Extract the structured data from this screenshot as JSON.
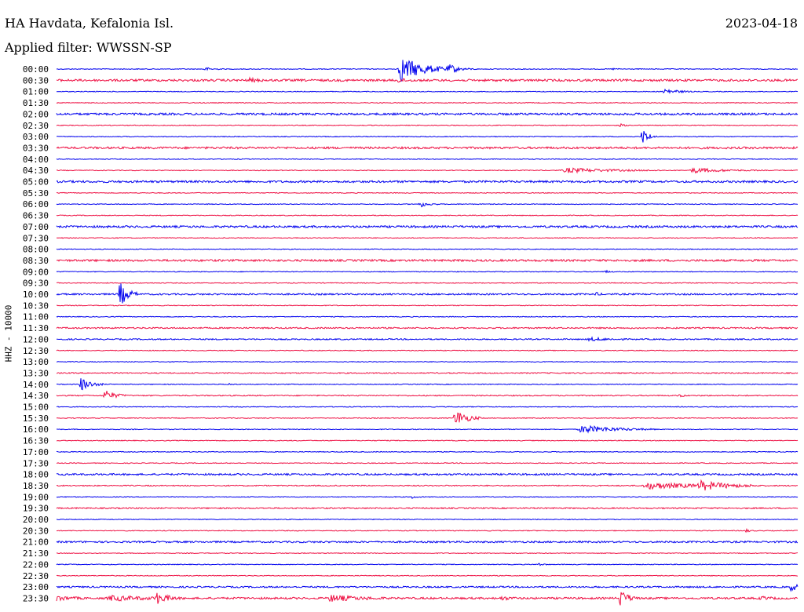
{
  "header": {
    "station": "HA Havdata, Kefalonia Isl.",
    "date": "2023-04-18",
    "filter": "Applied filter: WWSSN-SP"
  },
  "channel_label": "HHZ - 10000",
  "colors": {
    "even_rows": "#0000ee",
    "odd_rows": "#ee1144",
    "text": "#000000",
    "background": "#ffffff"
  },
  "chart_data": {
    "type": "line",
    "title": "HA Havdata, Kefalonia Isl.",
    "subtitle": "Applied filter: WWSSN-SP",
    "ylabel": "HHZ - 10000",
    "xlabel": "",
    "row_interval_minutes": 30,
    "row_duration_minutes": 30,
    "rows": [
      {
        "label": "00:00",
        "noise": 0.5,
        "events": [
          {
            "t": 0.2,
            "amp": 2,
            "dur": 0.01
          },
          {
            "t": 0.465,
            "amp": 16,
            "dur": 0.03
          },
          {
            "t": 0.53,
            "amp": 4,
            "dur": 0.015
          },
          {
            "t": 0.75,
            "amp": 1,
            "dur": 0.005
          }
        ]
      },
      {
        "label": "00:30",
        "noise": 1.4,
        "events": [
          {
            "t": 0.26,
            "amp": 2,
            "dur": 0.01
          },
          {
            "t": 0.46,
            "amp": 2,
            "dur": 0.01
          }
        ]
      },
      {
        "label": "01:00",
        "noise": 0.5,
        "events": [
          {
            "t": 0.82,
            "amp": 4,
            "dur": 0.015
          }
        ]
      },
      {
        "label": "01:30",
        "noise": 0.5,
        "events": []
      },
      {
        "label": "02:00",
        "noise": 1.3,
        "events": []
      },
      {
        "label": "02:30",
        "noise": 0.5,
        "events": [
          {
            "t": 0.76,
            "amp": 2,
            "dur": 0.005
          }
        ]
      },
      {
        "label": "03:00",
        "noise": 0.5,
        "events": [
          {
            "t": 0.79,
            "amp": 11,
            "dur": 0.008
          }
        ]
      },
      {
        "label": "03:30",
        "noise": 1.3,
        "events": []
      },
      {
        "label": "04:00",
        "noise": 0.5,
        "events": []
      },
      {
        "label": "04:30",
        "noise": 0.5,
        "events": [
          {
            "t": 0.69,
            "amp": 3,
            "dur": 0.05
          },
          {
            "t": 0.86,
            "amp": 3,
            "dur": 0.035
          }
        ]
      },
      {
        "label": "05:00",
        "noise": 1.3,
        "events": []
      },
      {
        "label": "05:30",
        "noise": 0.5,
        "events": []
      },
      {
        "label": "06:00",
        "noise": 0.5,
        "events": [
          {
            "t": 0.49,
            "amp": 4,
            "dur": 0.01
          }
        ]
      },
      {
        "label": "06:30",
        "noise": 0.5,
        "events": []
      },
      {
        "label": "07:00",
        "noise": 1.3,
        "events": []
      },
      {
        "label": "07:30",
        "noise": 0.5,
        "events": []
      },
      {
        "label": "08:00",
        "noise": 0.5,
        "events": []
      },
      {
        "label": "08:30",
        "noise": 1.3,
        "events": []
      },
      {
        "label": "09:00",
        "noise": 0.5,
        "events": [
          {
            "t": 0.74,
            "amp": 2,
            "dur": 0.005
          }
        ]
      },
      {
        "label": "09:30",
        "noise": 0.5,
        "events": []
      },
      {
        "label": "10:00",
        "noise": 1.0,
        "events": [
          {
            "t": 0.085,
            "amp": 16,
            "dur": 0.01
          },
          {
            "t": 0.725,
            "amp": 3,
            "dur": 0.005
          }
        ]
      },
      {
        "label": "10:30",
        "noise": 0.5,
        "events": []
      },
      {
        "label": "11:00",
        "noise": 0.5,
        "events": []
      },
      {
        "label": "11:30",
        "noise": 0.9,
        "events": []
      },
      {
        "label": "12:00",
        "noise": 0.8,
        "events": [
          {
            "t": 0.72,
            "amp": 2,
            "dur": 0.02
          }
        ]
      },
      {
        "label": "12:30",
        "noise": 0.5,
        "events": []
      },
      {
        "label": "13:00",
        "noise": 0.5,
        "events": []
      },
      {
        "label": "13:30",
        "noise": 0.7,
        "events": []
      },
      {
        "label": "14:00",
        "noise": 0.5,
        "events": [
          {
            "t": 0.033,
            "amp": 9,
            "dur": 0.012
          },
          {
            "t": 0.23,
            "amp": 2,
            "dur": 0.005
          }
        ]
      },
      {
        "label": "14:30",
        "noise": 0.7,
        "events": [
          {
            "t": 0.065,
            "amp": 7,
            "dur": 0.012
          },
          {
            "t": 0.84,
            "amp": 2,
            "dur": 0.005
          }
        ]
      },
      {
        "label": "15:00",
        "noise": 0.5,
        "events": []
      },
      {
        "label": "15:30",
        "noise": 0.5,
        "events": [
          {
            "t": 0.538,
            "amp": 12,
            "dur": 0.014
          }
        ]
      },
      {
        "label": "16:00",
        "noise": 0.5,
        "events": [
          {
            "t": 0.71,
            "amp": 5,
            "dur": 0.04
          }
        ]
      },
      {
        "label": "16:30",
        "noise": 0.5,
        "events": []
      },
      {
        "label": "17:00",
        "noise": 0.5,
        "events": []
      },
      {
        "label": "17:30",
        "noise": 0.5,
        "events": []
      },
      {
        "label": "18:00",
        "noise": 1.1,
        "events": []
      },
      {
        "label": "18:30",
        "noise": 0.7,
        "events": [
          {
            "t": 0.8,
            "amp": 4,
            "dur": 0.06
          },
          {
            "t": 0.87,
            "amp": 5,
            "dur": 0.03
          }
        ]
      },
      {
        "label": "19:00",
        "noise": 0.5,
        "events": [
          {
            "t": 0.48,
            "amp": 2,
            "dur": 0.005
          }
        ]
      },
      {
        "label": "19:30",
        "noise": 0.8,
        "events": []
      },
      {
        "label": "20:00",
        "noise": 0.5,
        "events": []
      },
      {
        "label": "20:30",
        "noise": 0.5,
        "events": [
          {
            "t": 0.93,
            "amp": 2,
            "dur": 0.005
          }
        ]
      },
      {
        "label": "21:00",
        "noise": 1.1,
        "events": []
      },
      {
        "label": "21:30",
        "noise": 0.5,
        "events": []
      },
      {
        "label": "22:00",
        "noise": 0.5,
        "events": [
          {
            "t": 0.65,
            "amp": 2,
            "dur": 0.005
          }
        ]
      },
      {
        "label": "22:30",
        "noise": 0.5,
        "events": []
      },
      {
        "label": "23:00",
        "noise": 1.0,
        "events": [
          {
            "t": 0.99,
            "amp": 5,
            "dur": 0.01
          }
        ]
      },
      {
        "label": "23:30",
        "noise": 1.2,
        "events": [
          {
            "t": 0.0,
            "amp": 3,
            "dur": 0.015
          },
          {
            "t": 0.075,
            "amp": 3,
            "dur": 0.04
          },
          {
            "t": 0.135,
            "amp": 7,
            "dur": 0.012
          },
          {
            "t": 0.37,
            "amp": 4,
            "dur": 0.03
          },
          {
            "t": 0.6,
            "amp": 2,
            "dur": 0.01
          },
          {
            "t": 0.76,
            "amp": 11,
            "dur": 0.01
          },
          {
            "t": 0.95,
            "amp": 2,
            "dur": 0.01
          }
        ]
      }
    ]
  }
}
